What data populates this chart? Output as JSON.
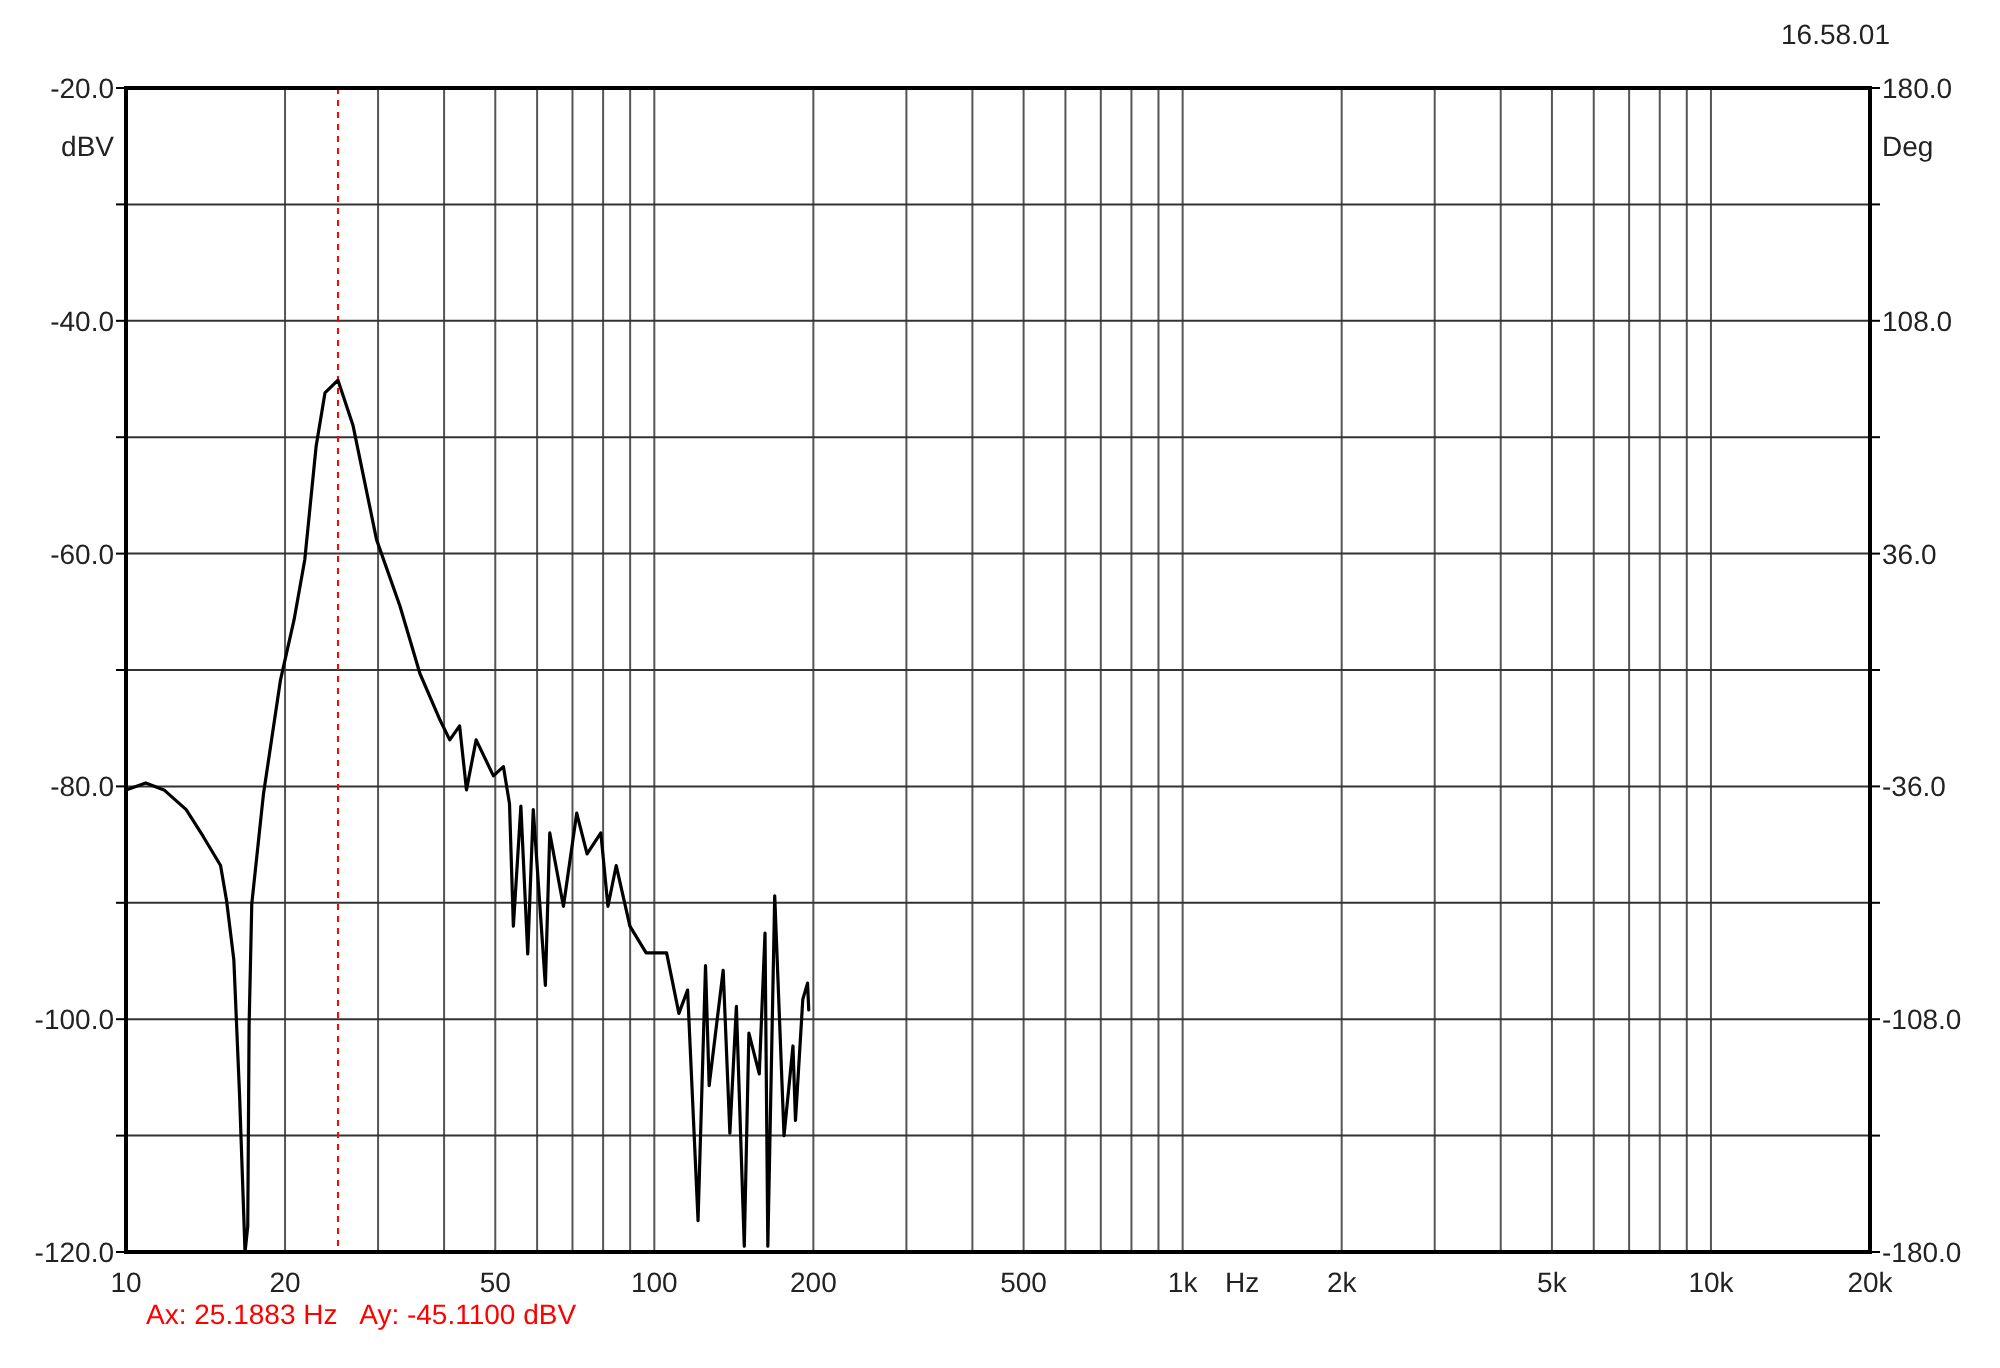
{
  "chart_data": {
    "type": "line",
    "xlabel": "Hz",
    "ylabel": "dBV",
    "y2label": "Deg",
    "log": "x",
    "grid": true,
    "xlim": [
      10,
      20000
    ],
    "ylim": [
      -120,
      -20
    ],
    "y2lim": [
      -180,
      180
    ],
    "xticks": [
      10,
      20,
      {
        "value": 30,
        "label": null
      },
      {
        "value": 40,
        "label": null
      },
      50,
      {
        "value": 60,
        "label": null
      },
      {
        "value": 70,
        "label": null
      },
      {
        "value": 80,
        "label": null
      },
      {
        "value": 90,
        "label": null
      },
      100,
      200,
      {
        "value": 300,
        "label": null
      },
      {
        "value": 400,
        "label": null
      },
      500,
      {
        "value": 600,
        "label": null
      },
      {
        "value": 700,
        "label": null
      },
      {
        "value": 800,
        "label": null
      },
      {
        "value": 900,
        "label": null
      },
      {
        "value": 1000,
        "label": "1k"
      },
      {
        "value": 2000,
        "label": "2k"
      },
      {
        "value": 3000,
        "label": null
      },
      {
        "value": 4000,
        "label": null
      },
      {
        "value": 5000,
        "label": "5k"
      },
      {
        "value": 6000,
        "label": null
      },
      {
        "value": 7000,
        "label": null
      },
      {
        "value": 8000,
        "label": null
      },
      {
        "value": 9000,
        "label": null
      },
      {
        "value": 10000,
        "label": "10k"
      },
      {
        "value": 20000,
        "label": "20k"
      }
    ],
    "yticks": [
      {
        "value": -120,
        "label": "-120.0"
      },
      {
        "value": -110,
        "label": null
      },
      {
        "value": -100,
        "label": "-100.0"
      },
      {
        "value": -90,
        "label": null
      },
      {
        "value": -80,
        "label": "-80.0"
      },
      {
        "value": -70,
        "label": null
      },
      {
        "value": -60,
        "label": "-60.0"
      },
      {
        "value": -50,
        "label": null
      },
      {
        "value": -40,
        "label": "-40.0"
      },
      {
        "value": -30,
        "label": null
      },
      {
        "value": -20,
        "label": "-20.0"
      }
    ],
    "y2ticks": [
      {
        "value": -180,
        "label": "-180.0"
      },
      {
        "value": -144,
        "label": null
      },
      {
        "value": -108,
        "label": "-108.0"
      },
      {
        "value": -72,
        "label": null
      },
      {
        "value": -36,
        "label": "-36.0"
      },
      {
        "value": 0,
        "label": null
      },
      {
        "value": 36,
        "label": "36.0"
      },
      {
        "value": 72,
        "label": null
      },
      {
        "value": 108,
        "label": "108.0"
      },
      {
        "value": 144,
        "label": null
      },
      {
        "value": 180,
        "label": "180.0"
      }
    ],
    "ref_lines": [
      {
        "axis": "x",
        "value": 25.1883,
        "color": "#ff0000",
        "line_style": "dashed"
      }
    ],
    "annotations": [
      "16.58.01",
      "Ax: 25.1883 Hz   Ay: -45.1100 dBV"
    ],
    "series": [
      {
        "color": "#000000",
        "x": [
          10.0,
          10.9,
          11.8,
          13.0,
          14.0,
          15.1,
          15.5,
          16.0,
          16.4,
          16.8,
          17.0,
          17.1,
          17.3,
          18.2,
          19.6,
          20.8,
          21.8,
          22.9,
          23.8,
          25.19,
          26.9,
          29.8,
          33.0,
          36.0,
          39.3,
          41.0,
          42.8,
          44.1,
          46,
          49.6,
          51.8,
          53.2,
          54.1,
          55.9,
          57.6,
          59.0,
          62.2,
          63.4,
          67.3,
          71.3,
          74.6,
          79.2,
          81.7,
          84.7,
          89.9,
          96.5,
          105.5,
          111.3,
          115.6,
          121,
          125,
          127,
          135,
          139,
          143,
          148,
          151,
          158,
          162,
          164,
          169,
          176,
          183,
          185,
          191,
          195,
          196
        ],
        "values": [
          -80.3,
          -79.7,
          -80.3,
          -82.0,
          -84.3,
          -86.8,
          -89.8,
          -94.9,
          -106.4,
          -120,
          -117.8,
          -100.6,
          -90.1,
          -80.7,
          -70.9,
          -65.7,
          -60.5,
          -50.8,
          -46.2,
          -45.1,
          -49.0,
          -58.8,
          -64.5,
          -70.3,
          -74.3,
          -76.0,
          -74.8,
          -80.3,
          -76.0,
          -79.1,
          -78.3,
          -81.5,
          -92.0,
          -81.7,
          -94.4,
          -82.0,
          -97.1,
          -84.0,
          -90.3,
          -82.3,
          -85.8,
          -84.0,
          -90.3,
          -86.8,
          -92.0,
          -94.3,
          -94.3,
          -99.5,
          -97.5,
          -117.3,
          -95.4,
          -105.7,
          -95.8,
          -109.8,
          -98.9,
          -119.5,
          -101.2,
          -104.7,
          -92.6,
          -119.5,
          -89.4,
          -110.0,
          -102.3,
          -108.7,
          -98.3,
          -96.9,
          -99.2
        ]
      }
    ]
  }
}
